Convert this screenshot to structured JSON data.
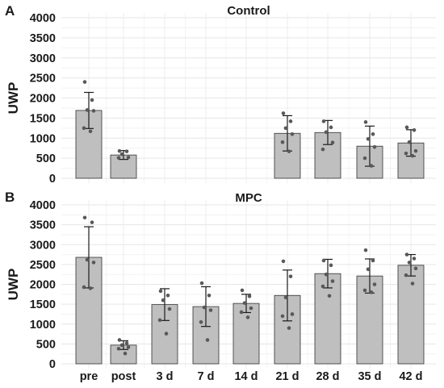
{
  "figure": {
    "x_categories": [
      "pre",
      "post",
      "3 d",
      "7 d",
      "14 d",
      "21 d",
      "28 d",
      "35 d",
      "42 d"
    ]
  },
  "chart_data": [
    {
      "panel_label": "A",
      "type": "bar",
      "title": "Control",
      "ylabel": "UWP",
      "xlabel": "",
      "ylim": [
        0,
        4000
      ],
      "yticks": [
        0,
        500,
        1000,
        1500,
        2000,
        2500,
        3000,
        3500,
        4000
      ],
      "grid": true,
      "categories": [
        "pre",
        "post",
        "3 d",
        "7 d",
        "14 d",
        "21 d",
        "28 d",
        "35 d",
        "42 d"
      ],
      "values": [
        1690,
        580,
        null,
        null,
        null,
        1120,
        1140,
        800,
        880
      ],
      "sd": [
        450,
        110,
        null,
        null,
        null,
        440,
        300,
        500,
        330
      ],
      "points": [
        [
          2400,
          1950,
          1700,
          1680,
          1250,
          1170
        ],
        [
          680,
          670,
          600,
          520,
          510
        ],
        [],
        [],
        [],
        [
          1620,
          1420,
          1250,
          1100,
          900,
          670
        ],
        [
          1420,
          1270,
          1150,
          890,
          720
        ],
        [
          1400,
          1100,
          980,
          780,
          500,
          310
        ],
        [
          1270,
          1200,
          900,
          680,
          620,
          560
        ]
      ],
      "colors": {
        "bar": "#bfbfbf",
        "point": "#595959"
      }
    },
    {
      "panel_label": "B",
      "type": "bar",
      "title": "MPC",
      "ylabel": "UWP",
      "xlabel": "",
      "ylim": [
        0,
        4000
      ],
      "yticks": [
        0,
        500,
        1000,
        1500,
        2000,
        2500,
        3000,
        3500,
        4000
      ],
      "grid": true,
      "categories": [
        "pre",
        "post",
        "3 d",
        "7 d",
        "14 d",
        "21 d",
        "28 d",
        "35 d",
        "42 d"
      ],
      "values": [
        2680,
        470,
        1490,
        1440,
        1520,
        1720,
        2270,
        2210,
        2480
      ],
      "sd": [
        770,
        110,
        400,
        500,
        230,
        640,
        360,
        430,
        270
      ],
      "points": [
        [
          3680,
          3560,
          2620,
          2550,
          1930,
          1900
        ],
        [
          600,
          520,
          470,
          420,
          380,
          260
        ],
        [
          1830,
          1720,
          1600,
          1380,
          1100,
          760
        ],
        [
          2030,
          1720,
          1420,
          1350,
          1050,
          600
        ],
        [
          1850,
          1700,
          1530,
          1400,
          1300,
          1170
        ],
        [
          2580,
          2200,
          1670,
          1250,
          1200,
          900
        ],
        [
          2600,
          2480,
          2250,
          2080,
          1950,
          1710
        ],
        [
          2860,
          2600,
          2380,
          2000,
          1850,
          1800
        ],
        [
          2750,
          2650,
          2550,
          2400,
          2230,
          2020
        ]
      ],
      "colors": {
        "bar": "#bfbfbf",
        "point": "#595959"
      }
    }
  ]
}
